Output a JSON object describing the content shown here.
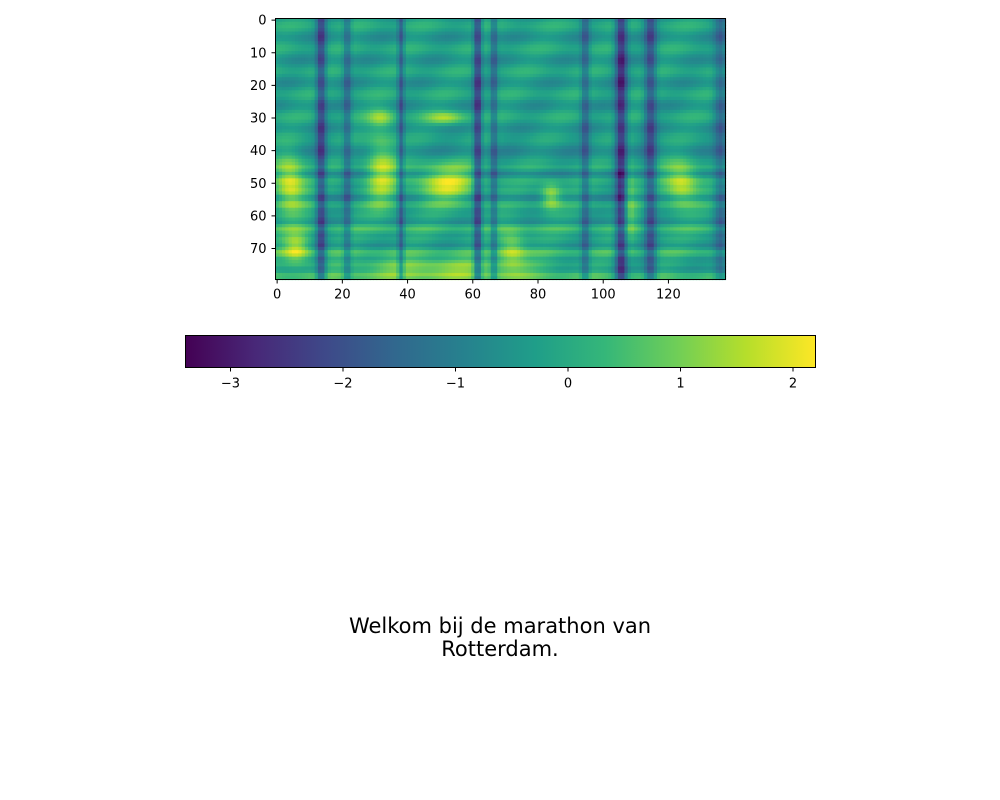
{
  "chart_data": {
    "type": "heatmap",
    "title": "",
    "xlabel": "",
    "ylabel": "",
    "colormap": "viridis",
    "colormap_stops": [
      "#440154",
      "#482878",
      "#3e4989",
      "#31688e",
      "#26828e",
      "#1f9e89",
      "#35b779",
      "#6ece58",
      "#b5de2b",
      "#fde725"
    ],
    "n_frames": 138,
    "n_bins": 80,
    "xlim": [
      -0.5,
      137.5
    ],
    "ylim": [
      79.5,
      -0.5
    ],
    "x_ticks": [
      0,
      20,
      40,
      60,
      80,
      100,
      120
    ],
    "y_ticks": [
      0,
      10,
      20,
      30,
      40,
      50,
      60,
      70
    ],
    "colorbar": {
      "orientation": "horizontal",
      "vmin": -3.4,
      "vmax": 2.2,
      "ticks": [
        -3,
        -2,
        -1,
        0,
        1,
        2
      ]
    },
    "vertical_bands": [
      {
        "frame": 13.5,
        "width": 1.5,
        "level": -2.0
      },
      {
        "frame": 21.5,
        "width": 1.2,
        "level": -1.2
      },
      {
        "frame": 38.0,
        "width": 1.0,
        "level": -1.5
      },
      {
        "frame": 61.5,
        "width": 1.2,
        "level": -2.2
      },
      {
        "frame": 66.5,
        "width": 1.0,
        "level": -1.3
      },
      {
        "frame": 94.5,
        "width": 1.3,
        "level": -1.3
      },
      {
        "frame": 105.5,
        "width": 1.8,
        "level": -2.5
      },
      {
        "frame": 114.5,
        "width": 1.8,
        "level": -1.8
      },
      {
        "frame": 136.0,
        "width": 2.0,
        "level": -1.2
      }
    ],
    "bright_regions": [
      {
        "frame": 4,
        "bin": 50,
        "frame_spread": 4.5,
        "bin_spread": 9,
        "level": 2.2
      },
      {
        "frame": 6,
        "bin": 70,
        "frame_spread": 4,
        "bin_spread": 5,
        "level": 1.8
      },
      {
        "frame": 32,
        "bin": 46,
        "frame_spread": 4.5,
        "bin_spread": 12,
        "level": 1.8
      },
      {
        "frame": 32,
        "bin": 30,
        "frame_spread": 4,
        "bin_spread": 3,
        "level": 1.2
      },
      {
        "frame": 52,
        "bin": 50,
        "frame_spread": 9,
        "bin_spread": 6,
        "level": 2.0
      },
      {
        "frame": 52,
        "bin": 30,
        "frame_spread": 6,
        "bin_spread": 2,
        "level": 1.5
      },
      {
        "frame": 72,
        "bin": 70,
        "frame_spread": 4,
        "bin_spread": 6,
        "level": 1.5
      },
      {
        "frame": 84,
        "bin": 54,
        "frame_spread": 3,
        "bin_spread": 4,
        "level": 1.8
      },
      {
        "frame": 124,
        "bin": 50,
        "frame_spread": 5,
        "bin_spread": 7,
        "level": 2.0
      },
      {
        "frame": 108,
        "bin": 55,
        "frame_spread": 2,
        "bin_spread": 15,
        "level": 1.0
      },
      {
        "frame": 50,
        "bin": 76,
        "frame_spread": 30,
        "bin_spread": 3,
        "level": 1.5
      }
    ]
  },
  "caption": {
    "line1": "Welkom bij de marathon van",
    "line2": "Rotterdam."
  }
}
